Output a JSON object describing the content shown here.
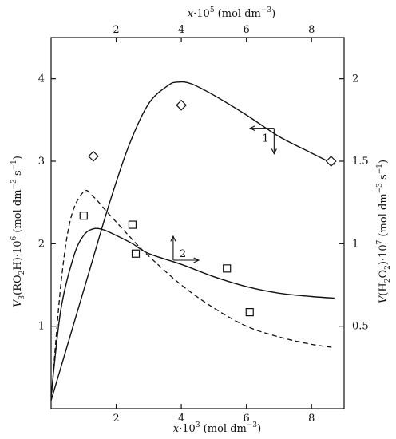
{
  "chart_data": {
    "type": "line",
    "axes": {
      "x_bottom": {
        "label_main": "x",
        "label_mid": "·10",
        "label_exp": "3",
        "label_unit": " (mol dm",
        "label_unit_exp": "−3",
        "label_close": ")",
        "lim": [
          0,
          9
        ],
        "ticks": [
          2,
          4,
          6,
          8
        ]
      },
      "x_top": {
        "label_main": "x",
        "label_mid": "·10",
        "label_exp": "5",
        "label_unit": " (mol dm",
        "label_unit_exp": "−3",
        "label_close": ")",
        "lim": [
          0,
          9
        ],
        "ticks": [
          2,
          4,
          6,
          8
        ]
      },
      "y_left": {
        "label_v": "V",
        "label_sub": "3",
        "label_mid": "(RO",
        "label_sub2": "2",
        "label_mid2": "H)·10",
        "label_exp": "6",
        "label_unit": " (mol dm",
        "label_unit_exp": "−3",
        "label_unit2": "s",
        "label_unit2_exp": "−1",
        "label_close": ")",
        "lim": [
          0,
          4.5
        ],
        "ticks": [
          1,
          2,
          3,
          4
        ]
      },
      "y_right": {
        "label_v": "V",
        "label_mid": "(H",
        "label_sub": "2",
        "label_mid2": "O",
        "label_sub2": "2",
        "label_mid3": ")·10",
        "label_exp": "7",
        "label_unit": " (mol dm",
        "label_unit_exp": "−3",
        "label_unit2": "s",
        "label_unit2_exp": "−1",
        "label_close": ")",
        "lim": [
          0,
          2.25
        ],
        "ticks": [
          0.5,
          1,
          1.5,
          2
        ],
        "tick_labels": [
          "0.5",
          "1",
          "1.5",
          "2"
        ]
      }
    },
    "series": [
      {
        "axis": "top-right",
        "line": "solid",
        "marker": "diamond",
        "curve": [
          [
            0.0,
            0.05
          ],
          [
            0.6,
            0.45
          ],
          [
            1.2,
            0.85
          ],
          [
            1.8,
            1.25
          ],
          [
            2.4,
            1.6
          ],
          [
            3.0,
            1.85
          ],
          [
            3.6,
            1.96
          ],
          [
            3.9,
            1.98
          ],
          [
            4.3,
            1.97
          ],
          [
            5.0,
            1.9
          ],
          [
            6.0,
            1.78
          ],
          [
            7.0,
            1.65
          ],
          [
            8.0,
            1.55
          ],
          [
            8.7,
            1.48
          ]
        ],
        "points": [
          [
            1.3,
            1.53
          ],
          [
            4.0,
            1.84
          ],
          [
            8.6,
            1.5
          ]
        ],
        "label": "1",
        "arrow_axis": "top-right"
      },
      {
        "axis": "bottom-left",
        "line": "solid",
        "marker": "square",
        "curve": [
          [
            0.0,
            0.15
          ],
          [
            0.3,
            1.2
          ],
          [
            0.7,
            1.85
          ],
          [
            1.0,
            2.1
          ],
          [
            1.3,
            2.18
          ],
          [
            1.6,
            2.17
          ],
          [
            2.0,
            2.1
          ],
          [
            2.5,
            2.0
          ],
          [
            3.0,
            1.88
          ],
          [
            4.0,
            1.75
          ],
          [
            5.0,
            1.6
          ],
          [
            6.0,
            1.48
          ],
          [
            7.0,
            1.4
          ],
          [
            8.0,
            1.36
          ],
          [
            8.7,
            1.34
          ]
        ],
        "points": [
          [
            1.0,
            2.34
          ],
          [
            2.5,
            2.23
          ],
          [
            2.6,
            1.88
          ],
          [
            5.4,
            1.7
          ],
          [
            6.1,
            1.17
          ]
        ],
        "label": "2",
        "arrow_axis": "bottom-left"
      },
      {
        "axis": "bottom-left",
        "line": "dashed",
        "marker": "none",
        "curve": [
          [
            0.0,
            0.1
          ],
          [
            0.3,
            1.5
          ],
          [
            0.6,
            2.3
          ],
          [
            1.0,
            2.63
          ],
          [
            1.3,
            2.57
          ],
          [
            1.8,
            2.35
          ],
          [
            2.5,
            2.05
          ],
          [
            3.0,
            1.85
          ],
          [
            4.0,
            1.5
          ],
          [
            5.0,
            1.22
          ],
          [
            6.0,
            1.0
          ],
          [
            7.0,
            0.87
          ],
          [
            8.0,
            0.78
          ],
          [
            8.7,
            0.74
          ]
        ]
      }
    ],
    "annotations": [
      {
        "text": "1",
        "x": 6.85,
        "y": 1.64,
        "axis": "top-right"
      },
      {
        "text": "2",
        "x": 4.05,
        "y": 0.98,
        "axis": "top-right"
      }
    ]
  }
}
